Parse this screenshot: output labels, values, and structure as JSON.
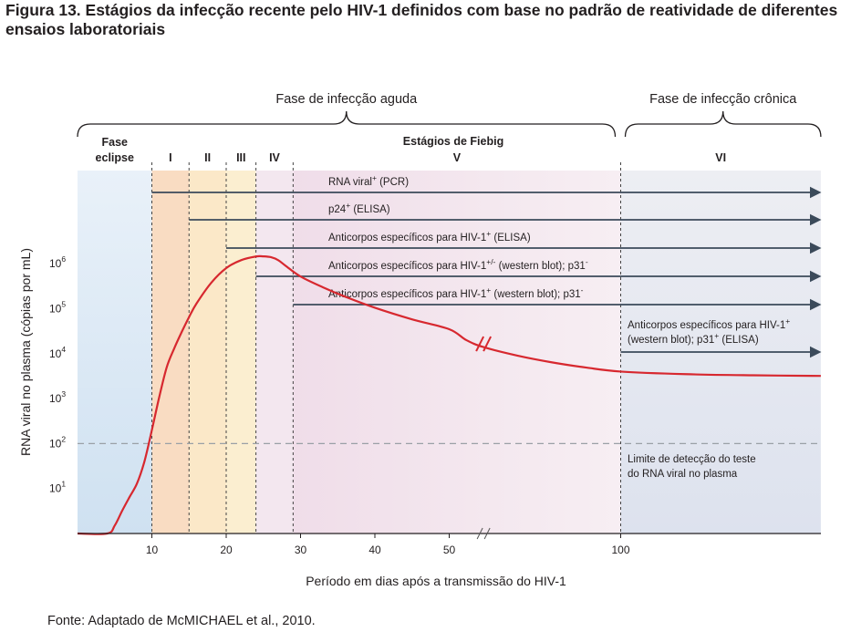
{
  "title": "Figura 13. Estágios da infecção recente pelo HIV-1 definidos com base no padrão de reatividade de diferentes ensaios laboratoriais",
  "source": "Fonte: Adaptado de McMICHAEL et al., 2010.",
  "phases": [
    {
      "label": "Fase de infecção aguda",
      "from": 0,
      "to": 100
    },
    {
      "label": "Fase de infecção crônica",
      "from": 100,
      "to": 130
    }
  ],
  "fiebig_title": "Estágios de Fiebig",
  "stages": [
    {
      "label": "Fase eclipse",
      "from": 0,
      "to": 10,
      "color": "#d2e3f2"
    },
    {
      "label": "I",
      "from": 10,
      "to": 15,
      "color": "#f9dcc2"
    },
    {
      "label": "II",
      "from": 15,
      "to": 20,
      "color": "#fbe8c8"
    },
    {
      "label": "III",
      "from": 20,
      "to": 24,
      "color": "#fbeed0"
    },
    {
      "label": "IV",
      "from": 24,
      "to": 29,
      "color": "#f3e7ef"
    },
    {
      "label": "V",
      "from": 29,
      "to": 100,
      "color": "#f1e2ec"
    },
    {
      "label": "VI",
      "from": 100,
      "to": 130,
      "color": "#e5e7f0"
    }
  ],
  "assays": [
    {
      "text": "RNA viral",
      "sup": "+",
      "rest": " (PCR)",
      "start": 10
    },
    {
      "text": "p24",
      "sup": "+",
      "rest": " (ELISA)",
      "start": 15
    },
    {
      "text": "Anticorpos específicos para HIV-1",
      "sup": "+",
      "rest": " (ELISA)",
      "start": 20
    },
    {
      "text": "Anticorpos específicos para HIV-1",
      "sup": "+/-",
      "rest": " (western blot); p31",
      "sup2": "-",
      "start": 24
    },
    {
      "text": "Anticorpos específicos para HIV-1",
      "sup": "+",
      "rest": " (western blot); p31",
      "sup2": "-",
      "start": 29
    },
    {
      "text": "Anticorpos específicos para HIV-1",
      "sup": "+",
      "line2": "(western blot); p31",
      "sup2": "+",
      "rest2": " (ELISA)",
      "start": 100
    }
  ],
  "detection_limit": {
    "value": 100,
    "label_line1": "Limite de detecção do teste",
    "label_line2": "do RNA viral no plasma"
  },
  "chart_data": {
    "type": "line",
    "xlabel": "Período em dias após a transmissão do HIV-1",
    "ylabel": "RNA viral no plasma (cópias por mL)",
    "x_ticks": [
      "10",
      "20",
      "30",
      "40",
      "50",
      "100"
    ],
    "x_tick_values": [
      10,
      20,
      30,
      40,
      50,
      100
    ],
    "axis_break_x": 60,
    "y_ticks": [
      {
        "base": "10",
        "exp": "1"
      },
      {
        "base": "10",
        "exp": "2"
      },
      {
        "base": "10",
        "exp": "3"
      },
      {
        "base": "10",
        "exp": "4"
      },
      {
        "base": "10",
        "exp": "5"
      },
      {
        "base": "10",
        "exp": "6"
      }
    ],
    "y_scale": "log",
    "series": [
      {
        "color": "#d7282f",
        "x": [
          0,
          4,
          5,
          6,
          7,
          8,
          9,
          10,
          11,
          12,
          13,
          14,
          15,
          16,
          18,
          20,
          22,
          24,
          25,
          26,
          27,
          28,
          30,
          33,
          36,
          40,
          45,
          50,
          55,
          60,
          70,
          80,
          90,
          100,
          110,
          120,
          130
        ],
        "y": [
          1.0,
          1.0,
          1.5,
          3.2,
          6.5,
          13,
          40,
          200,
          1100,
          5000,
          13000,
          30000,
          65000,
          130000,
          380000,
          800000,
          1200000,
          1450000,
          1460000,
          1400000,
          1200000,
          900000,
          520000,
          300000,
          185000,
          105000,
          58000,
          35000,
          20000,
          14000,
          9000,
          6400,
          4900,
          4000,
          3500,
          3300,
          3200
        ]
      }
    ]
  }
}
